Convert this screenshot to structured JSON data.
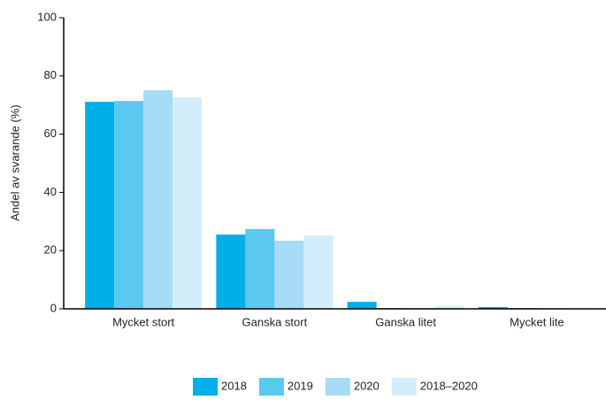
{
  "chart_data": {
    "type": "bar",
    "y_label": "Andel av svarande (%)",
    "categories": [
      "Mycket stort",
      "Ganska stort",
      "Ganska litet",
      "Mycket lite"
    ],
    "series": [
      {
        "name": "2018",
        "color": "#00aee8",
        "values": [
          71.1,
          25.5,
          2.4,
          0.6
        ]
      },
      {
        "name": "2019",
        "color": "#5bc8f0",
        "values": [
          71.4,
          27.4,
          0.3,
          0.3
        ]
      },
      {
        "name": "2020",
        "color": "#a6dcf5",
        "values": [
          75.1,
          23.4,
          0.3,
          0.2
        ]
      },
      {
        "name": "2018–2020",
        "color": "#d3eefa",
        "values": [
          72.6,
          25.2,
          0.9,
          0.2
        ]
      }
    ],
    "ylim": [
      0,
      100
    ],
    "yticks": [
      0,
      20,
      40,
      60,
      80,
      100
    ],
    "grid": false,
    "legend": "bottom"
  }
}
